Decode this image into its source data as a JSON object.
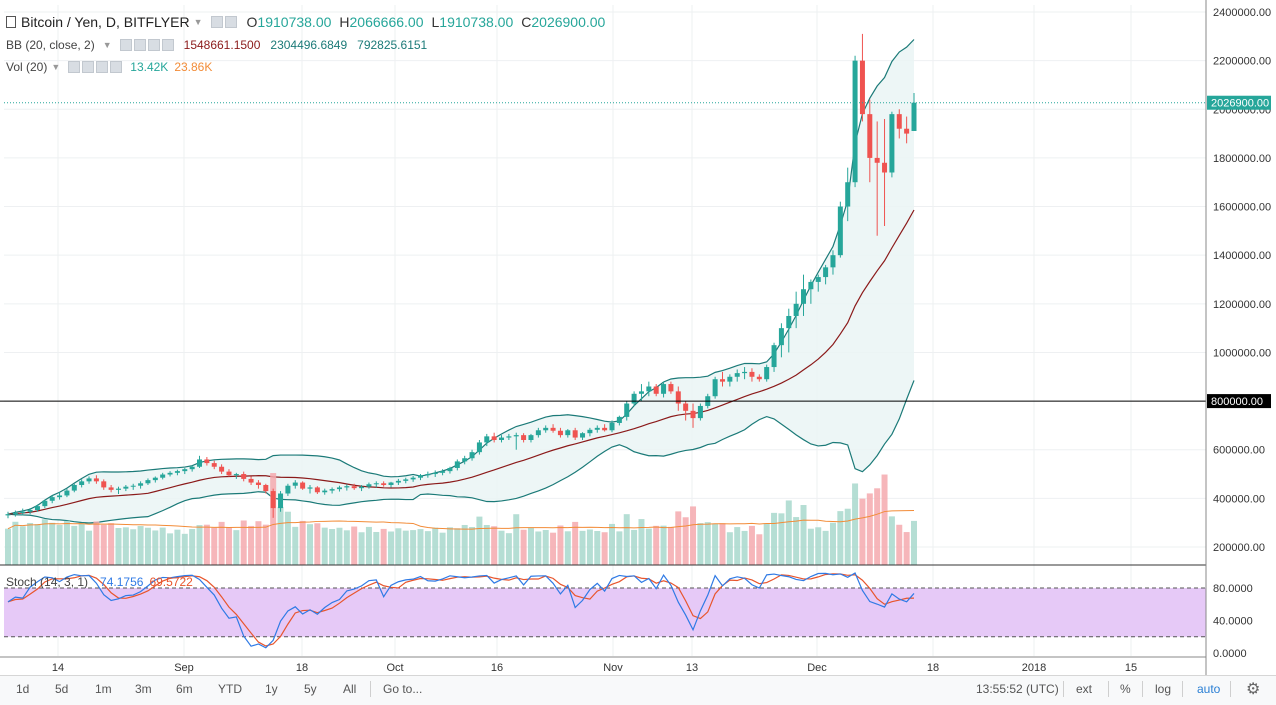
{
  "header": {
    "symbol": "Bitcoin / Yen, D, BITFLYER",
    "open_label": "O",
    "open": "1910738.00",
    "high_label": "H",
    "high": "2066666.00",
    "low_label": "L",
    "low": "1910738.00",
    "close_label": "C",
    "close": "2026900.00"
  },
  "bb": {
    "label": "BB (20, close, 2)",
    "basis": "1548661.1500",
    "upper": "2304496.6849",
    "lower": "792825.6151"
  },
  "vol": {
    "label": "Vol (20)",
    "value": "13.42K",
    "ma": "23.86K"
  },
  "stoch": {
    "label": "Stoch (14, 3, 1)",
    "k": "74.1756",
    "d": "69.5722"
  },
  "price_axis": {
    "ticks": [
      "2400000.00",
      "2200000.00",
      "2000000.00",
      "1800000.00",
      "1600000.00",
      "1400000.00",
      "1200000.00",
      "1000000.00",
      "800000.00",
      "600000.00",
      "400000.00",
      "200000.00"
    ],
    "last_price_label": "2026900.00",
    "hline_label": "800000.00"
  },
  "stoch_axis": {
    "ticks": [
      "80.0000",
      "40.0000",
      "0.0000"
    ]
  },
  "time_axis": {
    "ticks": [
      "14",
      "Sep",
      "18",
      "Oct",
      "16",
      "Nov",
      "13",
      "Dec",
      "18",
      "2018",
      "15"
    ]
  },
  "bottom_bar": {
    "ranges": [
      "1d",
      "5d",
      "1m",
      "3m",
      "6m",
      "YTD",
      "1y",
      "5y",
      "All"
    ],
    "goto": "Go to...",
    "clock": "13:55:52 (UTC)",
    "ext": "ext",
    "percent": "%",
    "log": "log",
    "auto": "auto"
  },
  "colors": {
    "up": "#26a69a",
    "down": "#ef5350",
    "bb_basis": "#8b1a1a",
    "bb_band": "#1b7a78",
    "bb_fill": "#eaf4f4",
    "vol_up": "#a8d8cc",
    "vol_down": "#f4a9ae",
    "vol_ma": "#f28c38",
    "stoch_k": "#2f7ae5",
    "stoch_d": "#e8552c",
    "stoch_bg": "#e6c9f7"
  },
  "chart_data": {
    "type": "candlestick",
    "title": "Bitcoin / Yen, D, BITFLYER",
    "ylim": [
      100000,
      2450000
    ],
    "candles_ohlc": [
      [
        330000,
        345000,
        318000,
        335000
      ],
      [
        335000,
        350000,
        325000,
        340000
      ],
      [
        340000,
        358000,
        330000,
        345000
      ],
      [
        345000,
        360000,
        335000,
        352000
      ],
      [
        352000,
        375000,
        345000,
        368000
      ],
      [
        368000,
        395000,
        360000,
        390000
      ],
      [
        390000,
        412000,
        380000,
        405000
      ],
      [
        405000,
        425000,
        395000,
        412000
      ],
      [
        412000,
        440000,
        405000,
        432000
      ],
      [
        432000,
        460000,
        425000,
        455000
      ],
      [
        455000,
        478000,
        445000,
        470000
      ],
      [
        470000,
        490000,
        460000,
        482000
      ],
      [
        482000,
        495000,
        460000,
        470000
      ],
      [
        470000,
        478000,
        435000,
        445000
      ],
      [
        445000,
        455000,
        425000,
        435000
      ],
      [
        435000,
        448000,
        418000,
        440000
      ],
      [
        440000,
        455000,
        430000,
        448000
      ],
      [
        448000,
        460000,
        435000,
        452000
      ],
      [
        452000,
        470000,
        440000,
        462000
      ],
      [
        462000,
        482000,
        455000,
        475000
      ],
      [
        475000,
        490000,
        465000,
        485000
      ],
      [
        485000,
        505000,
        478000,
        498000
      ],
      [
        498000,
        512000,
        490000,
        505000
      ],
      [
        505000,
        518000,
        495000,
        512000
      ],
      [
        512000,
        525000,
        500000,
        520000
      ],
      [
        520000,
        535000,
        510000,
        530000
      ],
      [
        530000,
        575000,
        525000,
        560000
      ],
      [
        560000,
        570000,
        535000,
        545000
      ],
      [
        545000,
        555000,
        520000,
        530000
      ],
      [
        530000,
        540000,
        500000,
        510000
      ],
      [
        510000,
        520000,
        490000,
        495000
      ],
      [
        495000,
        505000,
        480000,
        500000
      ],
      [
        500000,
        510000,
        470000,
        480000
      ],
      [
        480000,
        490000,
        455000,
        465000
      ],
      [
        465000,
        475000,
        440000,
        455000
      ],
      [
        455000,
        460000,
        420000,
        430000
      ],
      [
        430000,
        440000,
        320000,
        360000
      ],
      [
        360000,
        430000,
        345000,
        420000
      ],
      [
        420000,
        460000,
        410000,
        452000
      ],
      [
        452000,
        475000,
        440000,
        465000
      ],
      [
        465000,
        470000,
        435000,
        440000
      ],
      [
        440000,
        455000,
        420000,
        445000
      ],
      [
        445000,
        450000,
        418000,
        425000
      ],
      [
        425000,
        440000,
        415000,
        432000
      ],
      [
        432000,
        445000,
        420000,
        438000
      ],
      [
        438000,
        452000,
        428000,
        445000
      ],
      [
        445000,
        458000,
        432000,
        450000
      ],
      [
        450000,
        460000,
        435000,
        442000
      ],
      [
        442000,
        455000,
        430000,
        448000
      ],
      [
        448000,
        465000,
        440000,
        458000
      ],
      [
        458000,
        470000,
        445000,
        462000
      ],
      [
        462000,
        470000,
        448000,
        455000
      ],
      [
        455000,
        468000,
        445000,
        465000
      ],
      [
        465000,
        480000,
        455000,
        472000
      ],
      [
        472000,
        485000,
        462000,
        478000
      ],
      [
        478000,
        492000,
        468000,
        485000
      ],
      [
        485000,
        500000,
        475000,
        495000
      ],
      [
        495000,
        510000,
        485000,
        500000
      ],
      [
        500000,
        515000,
        488000,
        505000
      ],
      [
        505000,
        520000,
        495000,
        512000
      ],
      [
        512000,
        530000,
        502000,
        525000
      ],
      [
        525000,
        560000,
        515000,
        552000
      ],
      [
        552000,
        575000,
        540000,
        565000
      ],
      [
        565000,
        600000,
        555000,
        590000
      ],
      [
        590000,
        640000,
        580000,
        630000
      ],
      [
        630000,
        665000,
        615000,
        655000
      ],
      [
        655000,
        670000,
        630000,
        640000
      ],
      [
        640000,
        660000,
        630000,
        650000
      ],
      [
        650000,
        665000,
        640000,
        655000
      ],
      [
        655000,
        670000,
        600000,
        660000
      ],
      [
        660000,
        668000,
        630000,
        640000
      ],
      [
        640000,
        665000,
        630000,
        660000
      ],
      [
        660000,
        690000,
        650000,
        680000
      ],
      [
        680000,
        700000,
        670000,
        690000
      ],
      [
        690000,
        705000,
        670000,
        678000
      ],
      [
        678000,
        690000,
        650000,
        660000
      ],
      [
        660000,
        685000,
        650000,
        680000
      ],
      [
        680000,
        690000,
        640000,
        650000
      ],
      [
        650000,
        672000,
        640000,
        668000
      ],
      [
        668000,
        690000,
        655000,
        682000
      ],
      [
        682000,
        700000,
        670000,
        690000
      ],
      [
        690000,
        705000,
        675000,
        680000
      ],
      [
        680000,
        720000,
        672000,
        710000
      ],
      [
        710000,
        740000,
        700000,
        735000
      ],
      [
        735000,
        800000,
        720000,
        790000
      ],
      [
        790000,
        840000,
        780000,
        830000
      ],
      [
        830000,
        870000,
        800000,
        840000
      ],
      [
        840000,
        880000,
        820000,
        860000
      ],
      [
        860000,
        870000,
        820000,
        830000
      ],
      [
        830000,
        880000,
        815000,
        870000
      ],
      [
        870000,
        880000,
        830000,
        840000
      ],
      [
        840000,
        860000,
        760000,
        790000
      ],
      [
        790000,
        800000,
        720000,
        760000
      ],
      [
        760000,
        790000,
        690000,
        730000
      ],
      [
        730000,
        790000,
        720000,
        780000
      ],
      [
        780000,
        830000,
        770000,
        820000
      ],
      [
        820000,
        900000,
        810000,
        890000
      ],
      [
        890000,
        920000,
        860000,
        880000
      ],
      [
        880000,
        910000,
        860000,
        900000
      ],
      [
        900000,
        930000,
        880000,
        915000
      ],
      [
        915000,
        940000,
        890000,
        920000
      ],
      [
        920000,
        935000,
        880000,
        900000
      ],
      [
        900000,
        910000,
        880000,
        890000
      ],
      [
        890000,
        950000,
        880000,
        940000
      ],
      [
        940000,
        1040000,
        920000,
        1030000
      ],
      [
        1030000,
        1120000,
        980000,
        1100000
      ],
      [
        1100000,
        1180000,
        1000000,
        1150000
      ],
      [
        1150000,
        1250000,
        1100000,
        1200000
      ],
      [
        1200000,
        1320000,
        1150000,
        1260000
      ],
      [
        1260000,
        1300000,
        1200000,
        1290000
      ],
      [
        1290000,
        1320000,
        1250000,
        1310000
      ],
      [
        1310000,
        1360000,
        1280000,
        1350000
      ],
      [
        1350000,
        1420000,
        1320000,
        1400000
      ],
      [
        1400000,
        1620000,
        1390000,
        1600000
      ],
      [
        1600000,
        1760000,
        1540000,
        1700000
      ],
      [
        1700000,
        2220000,
        1680000,
        2200000
      ],
      [
        2200000,
        2310000,
        1950000,
        1980000
      ],
      [
        1980000,
        2040000,
        1700000,
        1800000
      ],
      [
        1800000,
        1950000,
        1480000,
        1780000
      ],
      [
        1780000,
        1960000,
        1520000,
        1740000
      ],
      [
        1740000,
        1990000,
        1720000,
        1980000
      ],
      [
        1980000,
        2000000,
        1880000,
        1920000
      ],
      [
        1920000,
        1970000,
        1860000,
        1900000
      ],
      [
        1910738,
        2066666,
        1910738,
        2026900
      ]
    ]
  }
}
